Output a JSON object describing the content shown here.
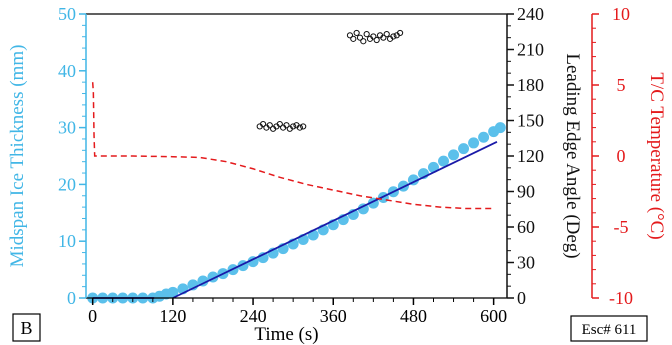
{
  "chart_data": {
    "type": "scatter",
    "panel_label": "B",
    "badge": "Esc# 611",
    "xlabel": "Time (s)",
    "xlim": [
      -10,
      620
    ],
    "xticks": [
      0,
      120,
      240,
      360,
      480,
      600
    ],
    "axes": {
      "left": {
        "label": "Midspan Ice Thickness (mm)",
        "range": [
          0,
          50
        ],
        "ticks": [
          0,
          10,
          20,
          30,
          40,
          50
        ],
        "color": "#41b6e6"
      },
      "right1": {
        "label": "Leading Edge Angle (Deg)",
        "range": [
          0,
          240
        ],
        "ticks": [
          0,
          30,
          60,
          90,
          120,
          150,
          180,
          210,
          240
        ],
        "color": "#111111"
      },
      "right2": {
        "label": "T/C Temperature (°C)",
        "range": [
          -10,
          10
        ],
        "ticks": [
          -10,
          -5,
          0,
          5,
          10
        ],
        "color": "#e41a1c"
      }
    },
    "grid": false,
    "series": [
      {
        "kind": "thickness_points",
        "axis": "left",
        "color": "#5bc0eb",
        "x": [
          0,
          15,
          30,
          45,
          60,
          75,
          90,
          100,
          110,
          120,
          135,
          150,
          165,
          180,
          195,
          210,
          225,
          240,
          255,
          270,
          285,
          300,
          315,
          330,
          345,
          360,
          375,
          390,
          405,
          420,
          435,
          450,
          465,
          480,
          495,
          510,
          525,
          540,
          555,
          570,
          585,
          600,
          610
        ],
        "y": [
          0,
          0,
          0,
          0,
          0,
          0,
          0,
          0.3,
          0.7,
          1.0,
          1.6,
          2.3,
          3.0,
          3.7,
          4.3,
          5.0,
          5.7,
          6.4,
          7.1,
          7.9,
          8.7,
          9.5,
          10.3,
          11.1,
          12.0,
          12.9,
          13.8,
          14.7,
          15.7,
          16.7,
          17.7,
          18.7,
          19.7,
          20.8,
          21.9,
          23.0,
          24.1,
          25.2,
          26.3,
          27.3,
          28.3,
          29.3,
          30.0
        ]
      },
      {
        "kind": "fit_line",
        "axis": "left",
        "color": "#1a1aa8",
        "x": [
          120,
          605
        ],
        "y": [
          0,
          27.5
        ]
      },
      {
        "kind": "thickness_baseline",
        "axis": "left",
        "color": "#1a1aa8",
        "x": [
          0,
          92
        ],
        "y": [
          0,
          0
        ]
      },
      {
        "kind": "angle_points",
        "axis": "right1",
        "color": "#111111",
        "x": [
          250,
          255,
          260,
          265,
          270,
          275,
          280,
          285,
          290,
          295,
          300,
          305,
          310,
          315,
          385,
          390,
          395,
          400,
          405,
          410,
          415,
          420,
          425,
          430,
          435,
          440,
          445,
          450,
          455,
          460
        ],
        "y": [
          145,
          147,
          144,
          146,
          143,
          145,
          147,
          144,
          146,
          143,
          145,
          146,
          144,
          145,
          222,
          219,
          224,
          220,
          217,
          223,
          219,
          221,
          218,
          222,
          220,
          223,
          219,
          221,
          222,
          224
        ]
      },
      {
        "kind": "temperature_line",
        "axis": "right2",
        "color": "#e41a1c",
        "dash": true,
        "x": [
          0,
          1,
          2,
          3,
          60,
          120,
          160,
          200,
          240,
          280,
          320,
          360,
          400,
          440,
          480,
          520,
          560,
          600
        ],
        "y": [
          5.2,
          4.5,
          1.5,
          0.0,
          0.0,
          -0.05,
          -0.1,
          -0.4,
          -0.9,
          -1.5,
          -2.0,
          -2.4,
          -2.8,
          -3.1,
          -3.4,
          -3.6,
          -3.7,
          -3.7
        ]
      }
    ]
  }
}
